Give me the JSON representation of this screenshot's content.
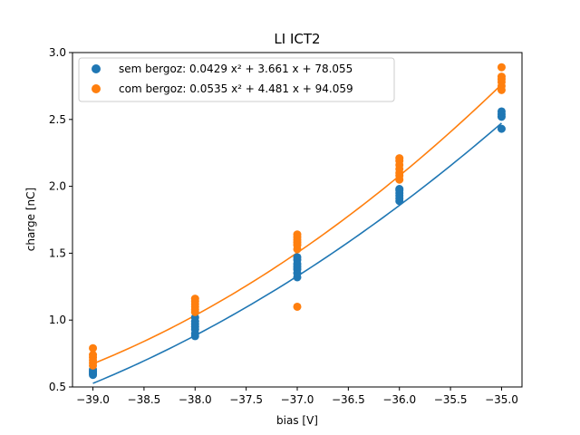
{
  "chart_data": {
    "type": "scatter",
    "title": "LI ICT2",
    "xlabel": "bias [V]",
    "ylabel": "charge [nC]",
    "xlim": [
      -39.2,
      -34.8
    ],
    "ylim": [
      0.5,
      3.0
    ],
    "xticks": [
      -39.0,
      -38.5,
      -38.0,
      -37.5,
      -37.0,
      -36.5,
      -36.0,
      -35.5,
      -35.0
    ],
    "xtick_labels": [
      "−39.0",
      "−38.5",
      "−38.0",
      "−37.5",
      "−37.0",
      "−36.5",
      "−36.0",
      "−35.5",
      "−35.0"
    ],
    "yticks": [
      0.5,
      1.0,
      1.5,
      2.0,
      2.5,
      3.0
    ],
    "ytick_labels": [
      "0.5",
      "1.0",
      "1.5",
      "2.0",
      "2.5",
      "3.0"
    ],
    "grid": false,
    "legend_position": "top-left",
    "series": [
      {
        "name": "sem bergoz: 0.0429 x² + 3.661 x + 78.055",
        "color": "#1f77b4",
        "fit": {
          "a": 0.0429,
          "b": 3.661,
          "c": 78.055
        },
        "points": [
          [
            -39,
            0.59
          ],
          [
            -39,
            0.6
          ],
          [
            -39,
            0.61
          ],
          [
            -39,
            0.62
          ],
          [
            -39,
            0.63
          ],
          [
            -38,
            0.88
          ],
          [
            -38,
            0.9
          ],
          [
            -38,
            0.93
          ],
          [
            -38,
            0.95
          ],
          [
            -38,
            0.97
          ],
          [
            -38,
            0.99
          ],
          [
            -38,
            1.02
          ],
          [
            -37,
            1.32
          ],
          [
            -37,
            1.35
          ],
          [
            -37,
            1.38
          ],
          [
            -37,
            1.4
          ],
          [
            -37,
            1.42
          ],
          [
            -37,
            1.45
          ],
          [
            -37,
            1.47
          ],
          [
            -36,
            1.89
          ],
          [
            -36,
            1.91
          ],
          [
            -36,
            1.93
          ],
          [
            -36,
            1.95
          ],
          [
            -36,
            1.97
          ],
          [
            -36,
            1.98
          ],
          [
            -35,
            2.43
          ],
          [
            -35,
            2.52
          ],
          [
            -35,
            2.54
          ],
          [
            -35,
            2.56
          ]
        ]
      },
      {
        "name": "com bergoz: 0.0535 x² + 4.481 x + 94.059",
        "color": "#ff7f0e",
        "fit": {
          "a": 0.0535,
          "b": 4.481,
          "c": 94.059
        },
        "points": [
          [
            -39,
            0.66
          ],
          [
            -39,
            0.68
          ],
          [
            -39,
            0.7
          ],
          [
            -39,
            0.72
          ],
          [
            -39,
            0.74
          ],
          [
            -39,
            0.79
          ],
          [
            -38,
            1.06
          ],
          [
            -38,
            1.08
          ],
          [
            -38,
            1.1
          ],
          [
            -38,
            1.12
          ],
          [
            -38,
            1.14
          ],
          [
            -38,
            1.16
          ],
          [
            -37,
            1.1
          ],
          [
            -37,
            1.53
          ],
          [
            -37,
            1.56
          ],
          [
            -37,
            1.58
          ],
          [
            -37,
            1.6
          ],
          [
            -37,
            1.62
          ],
          [
            -37,
            1.64
          ],
          [
            -36,
            2.05
          ],
          [
            -36,
            2.08
          ],
          [
            -36,
            2.1
          ],
          [
            -36,
            2.13
          ],
          [
            -36,
            2.16
          ],
          [
            -36,
            2.19
          ],
          [
            -36,
            2.21
          ],
          [
            -35,
            2.72
          ],
          [
            -35,
            2.75
          ],
          [
            -35,
            2.78
          ],
          [
            -35,
            2.8
          ],
          [
            -35,
            2.82
          ],
          [
            -35,
            2.89
          ]
        ]
      }
    ]
  }
}
